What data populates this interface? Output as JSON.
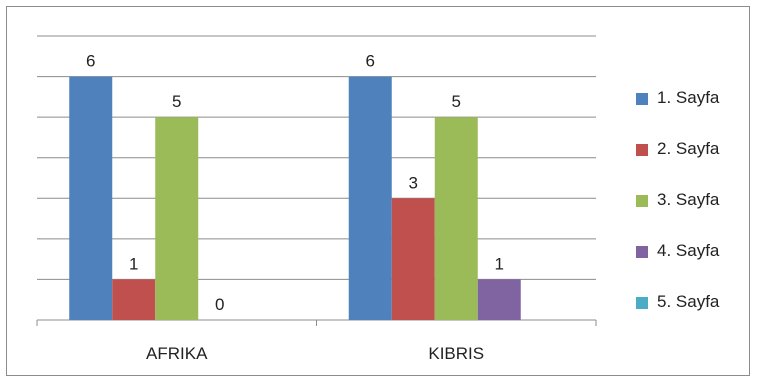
{
  "chart_data": {
    "type": "bar",
    "title": "",
    "xlabel": "",
    "ylabel": "",
    "categories": [
      "AFRIKA",
      "KIBRIS"
    ],
    "series": [
      {
        "name": "1. Sayfa",
        "color": "#4F81BD",
        "values": [
          6,
          6
        ]
      },
      {
        "name": "2. Sayfa",
        "color": "#C0504D",
        "values": [
          1,
          3
        ]
      },
      {
        "name": "3. Sayfa",
        "color": "#9BBB59",
        "values": [
          5,
          5
        ]
      },
      {
        "name": "4. Sayfa",
        "color": "#8064A2",
        "values": [
          0,
          1
        ]
      },
      {
        "name": "5. Sayfa",
        "color": "#4BACC6",
        "values": [
          null,
          null
        ]
      }
    ],
    "ylim": [
      0,
      7
    ],
    "grid": true,
    "legend_position": "right"
  }
}
